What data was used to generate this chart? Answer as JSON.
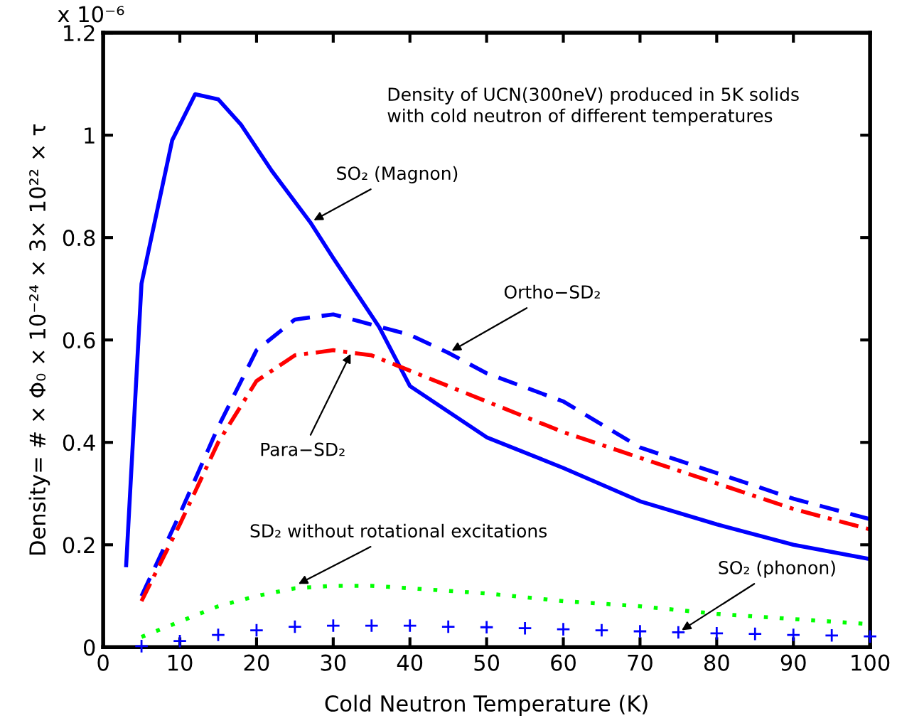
{
  "chart_data": {
    "type": "line",
    "xlabel": "Cold Neutron Temperature (K)",
    "ylabel": "Density= # × Φ₀ × 10⁻²⁴ × 3× 10²² × τ",
    "xlim": [
      0,
      100
    ],
    "ylim": [
      0,
      1.2
    ],
    "xticks": [
      0,
      10,
      20,
      30,
      40,
      50,
      60,
      70,
      80,
      90,
      100
    ],
    "yticks": [
      0,
      0.2,
      0.4,
      0.6,
      0.8,
      1,
      1.2
    ],
    "grid": false,
    "legend": false,
    "series": [
      {
        "line_style": "solid",
        "color": "#0000ff",
        "x": [
          3,
          5,
          9,
          12,
          15,
          18,
          22,
          27,
          30,
          36,
          40,
          45,
          50,
          60,
          70,
          80,
          90,
          100
        ],
        "values": [
          0.16,
          0.71,
          0.99,
          1.08,
          1.07,
          1.02,
          0.93,
          0.83,
          0.76,
          0.625,
          0.51,
          0.46,
          0.41,
          0.35,
          0.285,
          0.24,
          0.2,
          0.172
        ]
      },
      {
        "line_style": "dashed",
        "color": "#0000ff",
        "x": [
          5,
          10,
          15,
          20,
          25,
          30,
          35,
          40,
          45,
          50,
          60,
          70,
          80,
          90,
          100
        ],
        "values": [
          0.1,
          0.26,
          0.43,
          0.58,
          0.64,
          0.65,
          0.63,
          0.61,
          0.575,
          0.535,
          0.48,
          0.39,
          0.34,
          0.29,
          0.25
        ]
      },
      {
        "line_style": "dashdot",
        "color": "#ff0000",
        "x": [
          5,
          10,
          15,
          20,
          25,
          30,
          35,
          40,
          45,
          50,
          60,
          70,
          80,
          90,
          100
        ],
        "values": [
          0.09,
          0.24,
          0.4,
          0.52,
          0.57,
          0.58,
          0.57,
          0.54,
          0.51,
          0.48,
          0.42,
          0.37,
          0.32,
          0.27,
          0.23
        ]
      },
      {
        "line_style": "dotted",
        "color": "#00ff00",
        "x": [
          5,
          10,
          15,
          20,
          25,
          30,
          35,
          40,
          50,
          60,
          70,
          80,
          90,
          100
        ],
        "values": [
          0.02,
          0.05,
          0.08,
          0.1,
          0.115,
          0.12,
          0.12,
          0.115,
          0.105,
          0.09,
          0.08,
          0.065,
          0.055,
          0.045
        ]
      },
      {
        "type": "scatter",
        "marker": "cross",
        "color": "#0000ff",
        "x": [
          5,
          10,
          15,
          20,
          25,
          30,
          35,
          40,
          45,
          50,
          55,
          60,
          65,
          70,
          75,
          80,
          85,
          90,
          95,
          100
        ],
        "values": [
          0.002,
          0.012,
          0.024,
          0.033,
          0.04,
          0.042,
          0.042,
          0.042,
          0.04,
          0.039,
          0.037,
          0.035,
          0.033,
          0.031,
          0.029,
          0.027,
          0.026,
          0.024,
          0.023,
          0.021
        ]
      }
    ],
    "annotations": [
      "x 10⁻⁶",
      "Density of UCN(300neV) produced in 5K solids\nwith cold neutron of different temperatures",
      {
        "text": "SO₂ (Magnon)",
        "x": 27,
        "y": 0.83
      },
      {
        "text": "Ortho−SD₂",
        "x": 45,
        "y": 0.575
      },
      {
        "text": "Para−SD₂",
        "x": 32.5,
        "y": 0.58
      },
      {
        "text": "SD₂ without rotational excitations",
        "x": 25,
        "y": 0.12
      },
      {
        "text": "SO₂ (phonon)",
        "x": 75,
        "y": 0.029
      }
    ]
  }
}
